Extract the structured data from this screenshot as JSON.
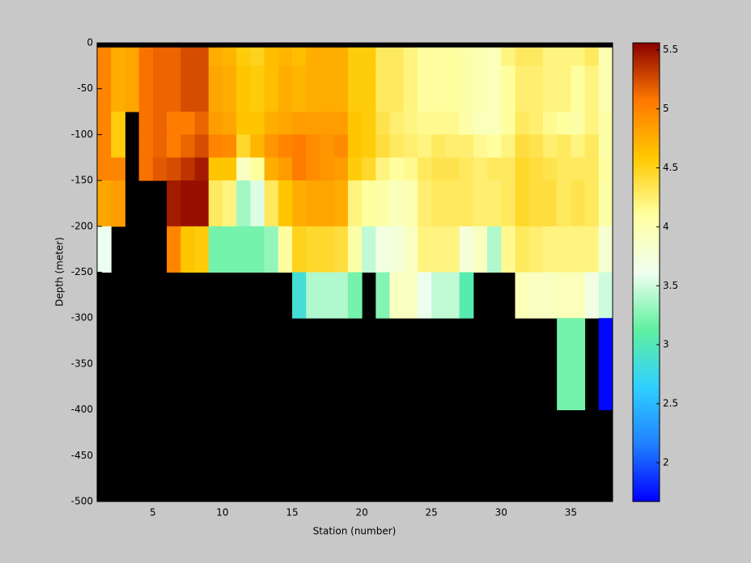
{
  "chart_data": {
    "type": "heatmap",
    "xlabel": "Station (number)",
    "ylabel": "Depth (meter)",
    "x": [
      1,
      2,
      3,
      4,
      5,
      6,
      7,
      8,
      9,
      10,
      11,
      12,
      13,
      14,
      15,
      16,
      17,
      18,
      19,
      20,
      21,
      22,
      23,
      24,
      25,
      26,
      27,
      28,
      29,
      30,
      31,
      32,
      33,
      34,
      35,
      36,
      37,
      38
    ],
    "y": [
      0,
      -5,
      -25,
      -75,
      -100,
      -125,
      -150,
      -200,
      -250,
      -300,
      -400,
      -500
    ],
    "values": [
      [
        null,
        null,
        null,
        null,
        null,
        null,
        null,
        null,
        null,
        null,
        null,
        null,
        null,
        null,
        null,
        null,
        null,
        null,
        null,
        null,
        null,
        null,
        null,
        null,
        null,
        null,
        null,
        null,
        null,
        null,
        null,
        null,
        null,
        null,
        null,
        null,
        null
      ],
      [
        5.0,
        4.75,
        4.8,
        5.1,
        5.15,
        5.15,
        5.25,
        5.25,
        4.75,
        4.7,
        4.55,
        4.5,
        4.65,
        4.7,
        4.65,
        4.75,
        4.75,
        4.75,
        4.55,
        4.55,
        4.3,
        4.3,
        4.2,
        4.1,
        4.1,
        4.1,
        4.05,
        4.0,
        3.95,
        4.2,
        4.3,
        4.3,
        4.2,
        4.2,
        4.2,
        4.3,
        4.0
      ],
      [
        5.0,
        4.75,
        4.8,
        5.1,
        5.15,
        5.15,
        5.25,
        5.25,
        4.8,
        4.75,
        4.6,
        4.55,
        4.65,
        4.75,
        4.7,
        4.75,
        4.75,
        4.75,
        4.55,
        4.55,
        4.3,
        4.3,
        4.2,
        4.1,
        4.1,
        4.1,
        4.05,
        4.0,
        3.95,
        4.1,
        4.25,
        4.25,
        4.2,
        4.2,
        4.1,
        4.2,
        4.0
      ],
      [
        5.0,
        4.55,
        null,
        5.1,
        5.15,
        5.05,
        5.05,
        5.15,
        4.85,
        4.8,
        4.6,
        4.6,
        4.75,
        4.8,
        4.85,
        4.85,
        4.85,
        4.85,
        4.6,
        4.55,
        4.35,
        4.25,
        4.2,
        4.15,
        4.15,
        4.15,
        4.05,
        3.95,
        3.95,
        4.1,
        4.3,
        4.25,
        4.15,
        4.1,
        4.05,
        4.2,
        4.05
      ],
      [
        5.0,
        4.55,
        null,
        5.1,
        5.15,
        5.05,
        5.15,
        5.25,
        5.0,
        4.95,
        4.45,
        4.7,
        4.9,
        5.0,
        5.05,
        4.95,
        4.9,
        4.95,
        4.6,
        4.55,
        4.4,
        4.3,
        4.25,
        4.2,
        4.3,
        4.25,
        4.25,
        4.15,
        4.1,
        4.2,
        4.4,
        4.35,
        4.25,
        4.3,
        4.2,
        4.3,
        4.05
      ],
      [
        5.0,
        5.0,
        null,
        5.1,
        5.2,
        5.25,
        5.35,
        5.45,
        4.6,
        4.6,
        3.9,
        4.1,
        4.75,
        4.85,
        5.05,
        4.95,
        4.9,
        4.85,
        4.55,
        4.45,
        4.2,
        4.1,
        4.15,
        4.3,
        4.35,
        4.35,
        4.3,
        4.25,
        4.3,
        4.3,
        4.45,
        4.4,
        4.35,
        4.3,
        4.3,
        4.3,
        4.1
      ],
      [
        4.8,
        4.85,
        null,
        null,
        null,
        5.45,
        5.5,
        5.5,
        4.3,
        4.2,
        3.35,
        3.55,
        4.3,
        4.6,
        4.75,
        4.8,
        4.8,
        4.75,
        4.2,
        4.1,
        4.05,
        3.95,
        4.0,
        4.25,
        4.3,
        4.3,
        4.3,
        4.25,
        4.25,
        4.3,
        4.45,
        4.4,
        4.4,
        4.3,
        4.35,
        4.3,
        4.05
      ],
      [
        3.6,
        null,
        null,
        null,
        null,
        5.0,
        4.6,
        4.55,
        3.2,
        3.2,
        3.2,
        3.2,
        3.3,
        4.1,
        4.5,
        4.45,
        4.45,
        4.4,
        4.05,
        3.45,
        3.7,
        3.75,
        3.9,
        4.2,
        4.2,
        4.2,
        3.75,
        3.9,
        3.4,
        4.15,
        4.3,
        4.25,
        4.2,
        4.2,
        4.2,
        4.2,
        3.8
      ],
      [
        null,
        null,
        null,
        null,
        null,
        null,
        null,
        null,
        null,
        null,
        null,
        null,
        null,
        null,
        2.85,
        3.4,
        3.4,
        3.4,
        3.2,
        null,
        3.25,
        3.9,
        3.9,
        3.6,
        3.45,
        3.45,
        3.05,
        null,
        null,
        null,
        3.95,
        3.9,
        3.9,
        3.95,
        3.95,
        3.7,
        3.5
      ],
      [
        null,
        null,
        null,
        null,
        null,
        null,
        null,
        null,
        null,
        null,
        null,
        null,
        null,
        null,
        null,
        null,
        null,
        null,
        null,
        null,
        null,
        null,
        null,
        null,
        null,
        null,
        null,
        null,
        null,
        null,
        null,
        null,
        null,
        3.2,
        3.2,
        null,
        1.7
      ],
      [
        null,
        null,
        null,
        null,
        null,
        null,
        null,
        null,
        null,
        null,
        null,
        null,
        null,
        null,
        null,
        null,
        null,
        null,
        null,
        null,
        null,
        null,
        null,
        null,
        null,
        null,
        null,
        null,
        null,
        null,
        null,
        null,
        null,
        null,
        null,
        null,
        null
      ]
    ],
    "xlim": [
      1,
      38
    ],
    "xticks": [
      5,
      10,
      15,
      20,
      25,
      30,
      35
    ],
    "ylim": [
      -500,
      0
    ],
    "yticks": [
      0,
      -50,
      -100,
      -150,
      -200,
      -250,
      -300,
      -350,
      -400,
      -450,
      -500
    ],
    "clim": [
      1.67,
      5.56
    ],
    "cticks": [
      2,
      2.5,
      3,
      3.5,
      4,
      4.5,
      5,
      5.5
    ],
    "colormap": [
      "#0000ff",
      "#2080ff",
      "#30d0ff",
      "#60f0a0",
      "#f0fff0",
      "#ffffa0",
      "#ffc800",
      "#ff7800",
      "#8a0000"
    ],
    "background": "#000000"
  }
}
